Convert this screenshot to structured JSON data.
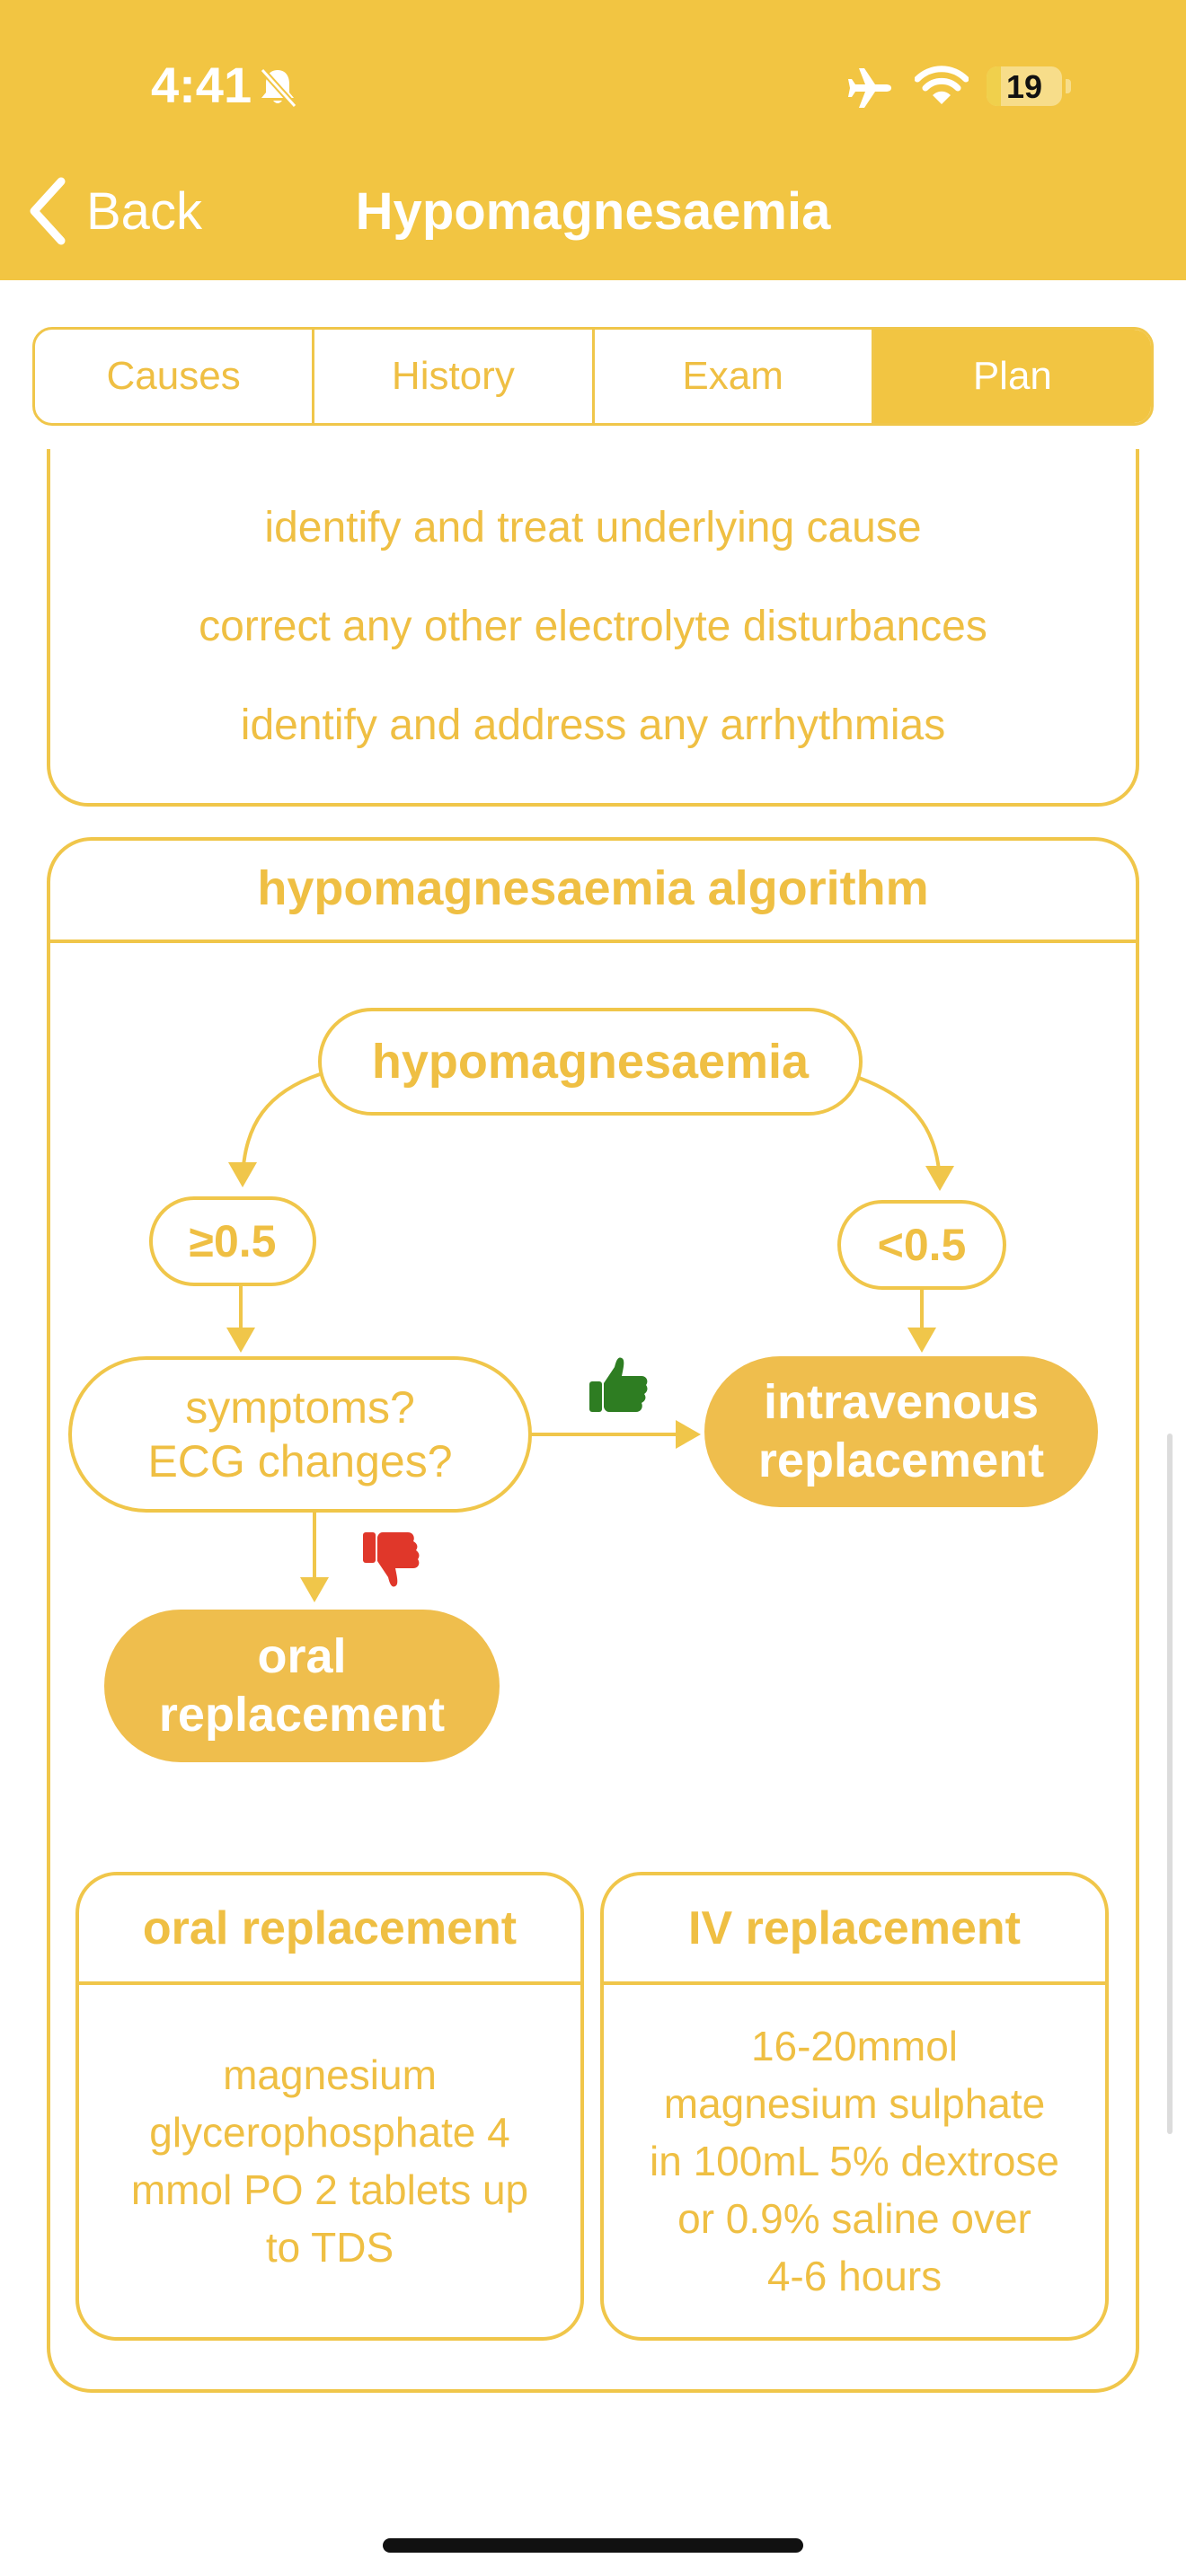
{
  "status_bar": {
    "time": "4:41",
    "battery": "19",
    "battery_level": 0.19
  },
  "nav": {
    "back_label": "Back",
    "title": "Hypomagnesaemia"
  },
  "tabs": [
    {
      "label": "Causes"
    },
    {
      "label": "History"
    },
    {
      "label": "Exam"
    },
    {
      "label": "Plan",
      "selected": true
    }
  ],
  "plan_items": [
    "identify and treat underlying cause",
    "correct any other electrolyte disturbances",
    "identify and address any arrhythmias"
  ],
  "algorithm": {
    "title": "hypomagnesaemia algorithm",
    "root": "hypomagnesaemia",
    "left_branch": "≥0.5",
    "right_branch": "<0.5",
    "question_line1": "symptoms?",
    "question_line2": "ECG changes?",
    "iv_line1": "intravenous",
    "iv_line2": "replacement",
    "oral_line1": "oral",
    "oral_line2": "replacement",
    "yes_icon": "thumbs-up-icon",
    "no_icon": "thumbs-down-icon"
  },
  "oral_card": {
    "title": "oral replacement",
    "lines": [
      "magnesium",
      "glycerophosphate 4",
      "mmol PO 2 tablets up",
      "to TDS"
    ]
  },
  "iv_card": {
    "title": "IV replacement",
    "lines": [
      "16-20mmol",
      "magnesium sulphate",
      "in 100mL 5% dextrose",
      "or 0.9% saline over",
      "4-6 hours"
    ]
  },
  "colors": {
    "accent": "#f2c542",
    "text_accent": "#efbf43",
    "filled_node": "#efbe4d",
    "yes": "#2e7d22",
    "no": "#e0372a"
  }
}
